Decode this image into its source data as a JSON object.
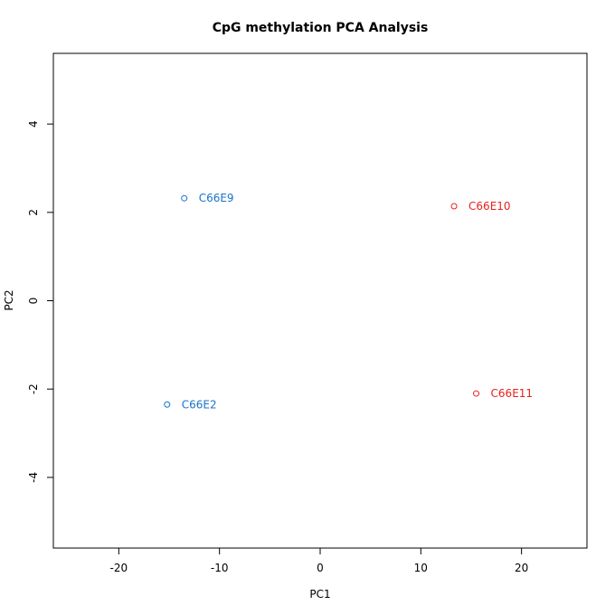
{
  "chart_data": {
    "type": "scatter",
    "title": "CpG methylation PCA Analysis",
    "xlabel": "PC1",
    "ylabel": "PC2",
    "xlim": [
      -26.5,
      26.5
    ],
    "ylim": [
      -5.6,
      5.6
    ],
    "xticks": [
      -20,
      -10,
      0,
      10,
      20
    ],
    "yticks": [
      -4,
      -2,
      0,
      2,
      4
    ],
    "grid": false,
    "legend": "none",
    "points": [
      {
        "label": "C66E9",
        "x": -13.5,
        "y": 2.32,
        "color": "#1a73c8"
      },
      {
        "label": "C66E2",
        "x": -15.2,
        "y": -2.35,
        "color": "#1a73c8"
      },
      {
        "label": "C66E10",
        "x": 13.3,
        "y": 2.14,
        "color": "#e8221c"
      },
      {
        "label": "C66E11",
        "x": 15.5,
        "y": -2.1,
        "color": "#e8221c"
      }
    ]
  }
}
